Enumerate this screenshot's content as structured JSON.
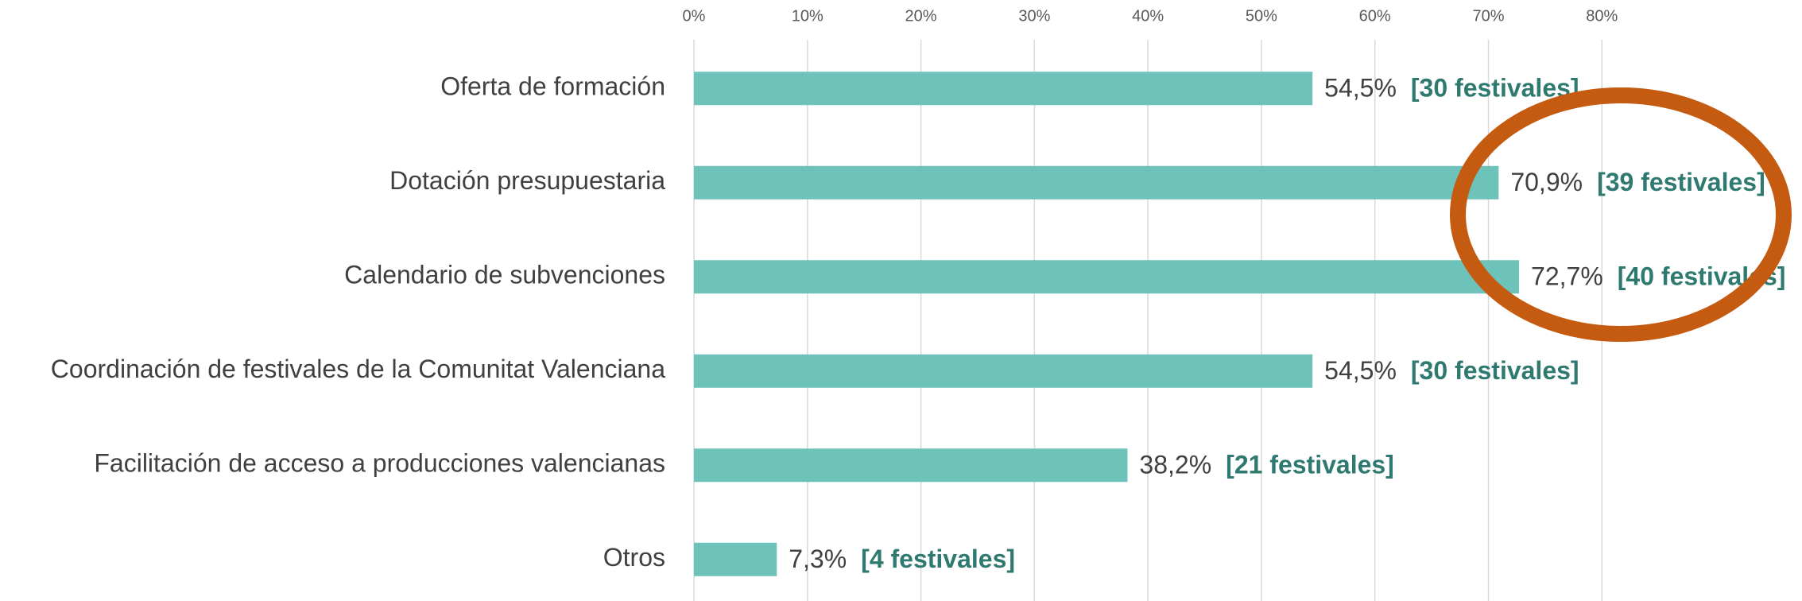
{
  "chart_data": {
    "type": "bar",
    "orientation": "horizontal",
    "categories": [
      "Oferta de formación",
      "Dotación presupuestaria",
      "Calendario de subvenciones",
      "Coordinación de festivales de la Comunitat Valenciana",
      "Facilitación de acceso a producciones valencianas",
      "Otros"
    ],
    "values": [
      54.5,
      70.9,
      72.7,
      54.5,
      38.2,
      7.3
    ],
    "value_labels": [
      "54,5%",
      "70,9%",
      "72,7%",
      "54,5%",
      "38,2%",
      "7,3%"
    ],
    "annotations": [
      "[30 festivales]",
      "[39 festivales]",
      "[40 festivales]",
      "[30 festivales]",
      "[21 festivales]",
      "[4 festivales]"
    ],
    "color": "#6dc3b9",
    "xlim": [
      0,
      97
    ],
    "xticks": [
      {
        "value": 0,
        "label": "0%"
      },
      {
        "value": 10,
        "label": "10%"
      },
      {
        "value": 20,
        "label": "20%"
      },
      {
        "value": 30,
        "label": "30%"
      },
      {
        "value": 40,
        "label": "40%"
      },
      {
        "value": 50,
        "label": "50%"
      },
      {
        "value": 60,
        "label": "60%"
      },
      {
        "value": 70,
        "label": "70%"
      },
      {
        "value": 80,
        "label": "80%"
      }
    ],
    "grid": true
  }
}
